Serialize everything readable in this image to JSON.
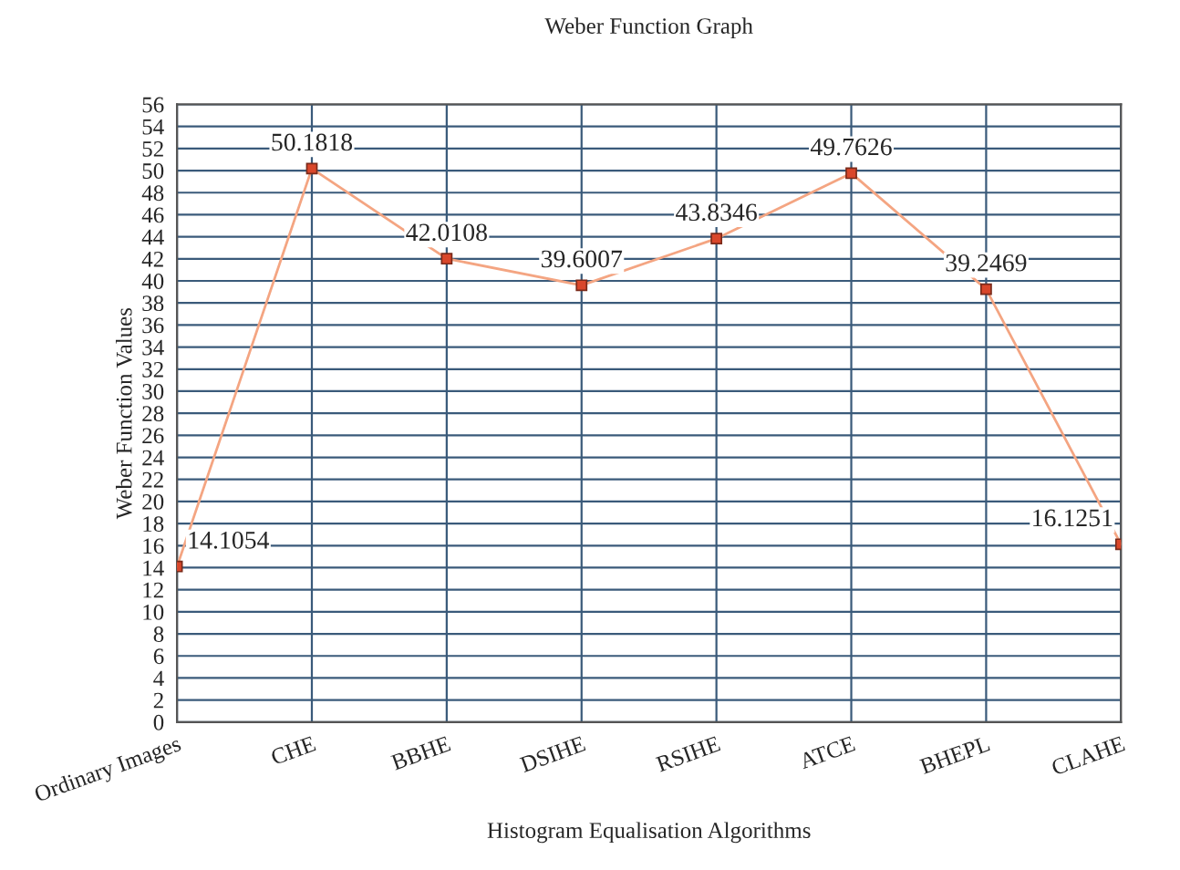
{
  "chart_data": {
    "type": "line",
    "title": "Weber Function Graph",
    "xlabel": "Histogram Equalisation Algorithms",
    "ylabel": "Weber Function Values",
    "categories": [
      "Ordinary Images",
      "CHE",
      "BBHE",
      "DSIHE",
      "RSIHE",
      "ATCE",
      "BHEPL",
      "CLAHE"
    ],
    "series": [
      {
        "color": "#f4a582",
        "values": [
          14.1054,
          50.1818,
          42.0108,
          39.6007,
          43.8346,
          49.7626,
          39.2469,
          16.1251
        ]
      }
    ],
    "ylim": [
      0,
      56
    ],
    "yticks": [
      0,
      2,
      4,
      6,
      8,
      10,
      12,
      14,
      16,
      18,
      20,
      22,
      24,
      26,
      28,
      30,
      32,
      34,
      36,
      38,
      40,
      42,
      44,
      46,
      48,
      50,
      52,
      54,
      56
    ],
    "grid": true,
    "marker": "square",
    "line_style": "solid",
    "data_labels": true
  }
}
